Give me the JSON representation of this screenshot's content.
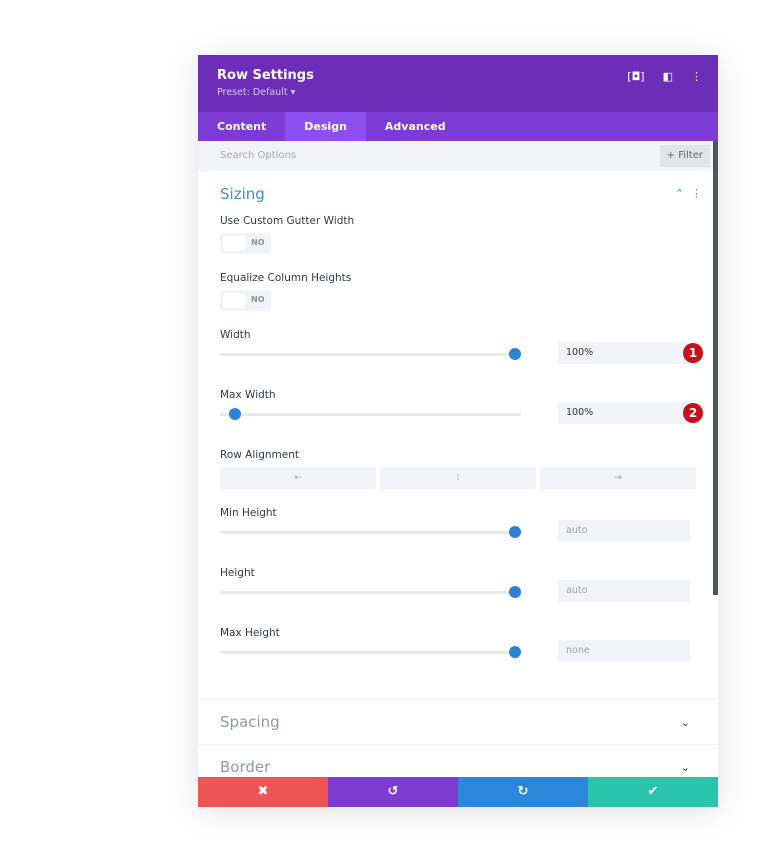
{
  "header": {
    "title": "Row Settings",
    "preset": "Preset: Default ▾",
    "icons": [
      "focus-icon",
      "split-view-icon",
      "more-icon"
    ]
  },
  "tabs": [
    {
      "label": "Content"
    },
    {
      "label": "Design",
      "active": true
    },
    {
      "label": "Advanced"
    }
  ],
  "search": {
    "placeholder": "Search Options",
    "filter_label": "+ Filter"
  },
  "sizing": {
    "title": "Sizing",
    "gutter": {
      "label": "Use Custom Gutter Width",
      "value": "NO"
    },
    "equalize": {
      "label": "Equalize Column Heights",
      "value": "NO"
    },
    "width": {
      "label": "Width",
      "value": "100%",
      "slider": 0.98,
      "badge": "1"
    },
    "max_width": {
      "label": "Max Width",
      "value": "100%",
      "slider": 0.05,
      "badge": "2"
    },
    "row_alignment": {
      "label": "Row Alignment",
      "options": [
        "⇤",
        "⁞",
        "⇥"
      ]
    },
    "min_height": {
      "label": "Min Height",
      "value": "auto",
      "slider": 0.98
    },
    "height": {
      "label": "Height",
      "value": "auto",
      "slider": 0.98
    },
    "max_height": {
      "label": "Max Height",
      "value": "none",
      "slider": 0.98
    }
  },
  "collapsed": [
    {
      "title": "Spacing"
    },
    {
      "title": "Border"
    }
  ],
  "footer": {
    "cancel": "✖",
    "undo": "↺",
    "redo": "↻",
    "save": "✔",
    "colors": [
      "#ef5555",
      "#7e3bd0",
      "#2b87da",
      "#29c4a9"
    ]
  }
}
